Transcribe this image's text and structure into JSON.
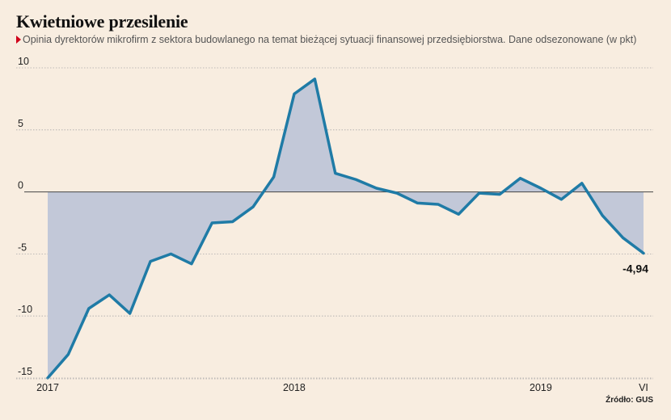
{
  "title": "Kwietniowe przesilenie",
  "subtitle": "Opinia dyrektorów mikrofirm z sektora budowlanego na temat bieżącej sytuacji finansowej przedsiębiorstwa. Dane odsezonowane (w pkt)",
  "source": "Źródło: GUS",
  "colors": {
    "line": "#1f7ba6",
    "area": "#c2c8d8",
    "zero_line": "#444444",
    "grid": "#aaaaaa",
    "marker": "#d0021b"
  },
  "chart_data": {
    "type": "area",
    "title": "Kwietniowe przesilenie",
    "xlabel": "",
    "ylabel": "",
    "ylim": [
      -15,
      10
    ],
    "yticks": [
      "10",
      "5",
      "0",
      "-5",
      "-10",
      "-15"
    ],
    "grid": true,
    "x_tick_labels": [
      {
        "index": 0,
        "label": "2017"
      },
      {
        "index": 12,
        "label": "2018"
      },
      {
        "index": 24,
        "label": "2019"
      },
      {
        "index": 29,
        "label": "VI"
      }
    ],
    "x": [
      "2017-01",
      "2017-02",
      "2017-03",
      "2017-04",
      "2017-05",
      "2017-06",
      "2017-07",
      "2017-08",
      "2017-09",
      "2017-10",
      "2017-11",
      "2017-12",
      "2018-01",
      "2018-02",
      "2018-03",
      "2018-04",
      "2018-05",
      "2018-06",
      "2018-07",
      "2018-08",
      "2018-09",
      "2018-10",
      "2018-11",
      "2018-12",
      "2019-01",
      "2019-02",
      "2019-03",
      "2019-04",
      "2019-05",
      "2019-06"
    ],
    "series": [
      {
        "values": [
          -15.0,
          -13.1,
          -9.4,
          -8.3,
          -9.8,
          -5.6,
          -5.0,
          -5.8,
          -2.5,
          -2.4,
          -1.2,
          1.2,
          7.9,
          9.1,
          1.5,
          1.0,
          0.3,
          -0.1,
          -0.9,
          -1.0,
          -1.8,
          -0.1,
          -0.2,
          1.1,
          0.3,
          -0.6,
          0.7,
          -1.9,
          -3.7,
          -4.94
        ]
      }
    ],
    "annotations": [
      {
        "index": 29,
        "label": "-4,94"
      }
    ]
  }
}
